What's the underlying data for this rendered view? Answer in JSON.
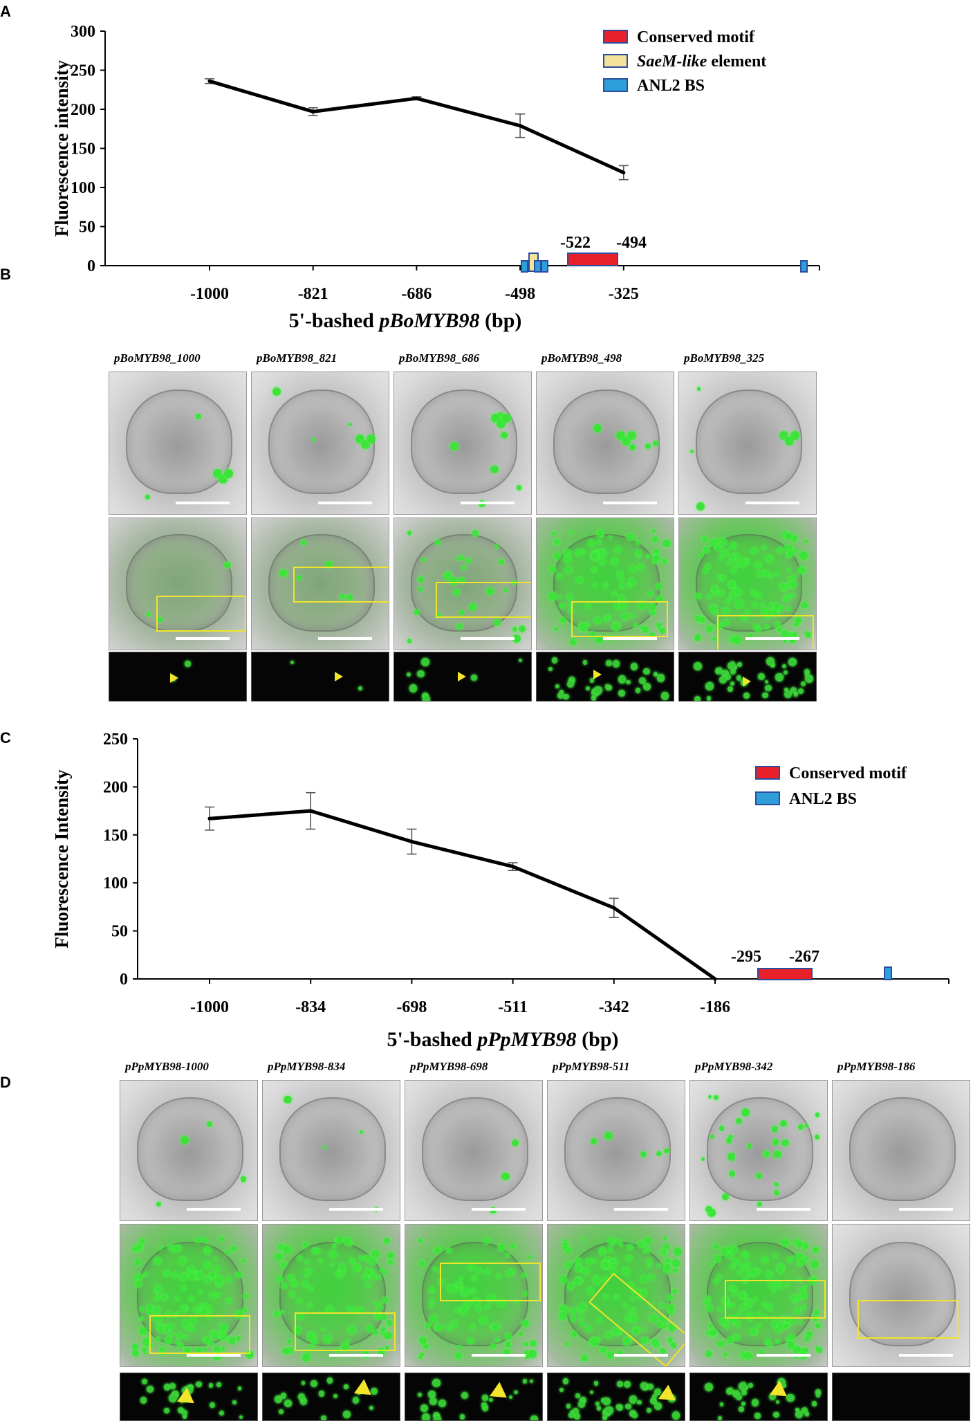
{
  "panels": {
    "a": "A",
    "b": "B",
    "c": "C",
    "d": "D"
  },
  "chart_data": [
    {
      "type": "line",
      "ylabel": "Fluorescence intensity",
      "xlabel_prefix": "5'-bashed ",
      "xlabel_gene": "pBoMYB98",
      "xlabel_suffix": " (bp)",
      "categories": [
        "-1000",
        "-821",
        "-686",
        "-498",
        "-325"
      ],
      "values": [
        236,
        197,
        214,
        179,
        119
      ],
      "errors": [
        3,
        5,
        2,
        15,
        9
      ],
      "ylim": [
        0,
        300
      ],
      "yticks": [
        0,
        50,
        100,
        150,
        200,
        250,
        300
      ],
      "legend_position": "top-right",
      "legend": [
        {
          "label_italic": "",
          "label": "Conserved motif",
          "color": "#e8202a"
        },
        {
          "label_italic": "SaeM-like",
          "label": " element",
          "color": "#f4e29a"
        },
        {
          "label_italic": "",
          "label": "ANL2 BS",
          "color": "#2f9fdc"
        }
      ],
      "motif_labels": [
        "-522",
        "-494"
      ]
    },
    {
      "type": "line",
      "ylabel": "Fluorescence Intensity",
      "xlabel_prefix": "5'-bashed ",
      "xlabel_gene": "pPpMYB98",
      "xlabel_suffix": " (bp)",
      "categories": [
        "-1000",
        "-834",
        "-698",
        "-511",
        "-342",
        "-186"
      ],
      "values": [
        167,
        175,
        143,
        117,
        74,
        0
      ],
      "errors": [
        12,
        19,
        13,
        4,
        10,
        0
      ],
      "ylim": [
        0,
        250
      ],
      "yticks": [
        0,
        50,
        100,
        150,
        200,
        250
      ],
      "legend_position": "top-right",
      "legend": [
        {
          "label_italic": "",
          "label": "Conserved motif",
          "color": "#e8202a"
        },
        {
          "label_italic": "",
          "label": "ANL2 BS",
          "color": "#2f9fdc"
        }
      ],
      "motif_labels": [
        "-295",
        "-267"
      ]
    }
  ],
  "micrographs_b": {
    "labels": [
      "pBoMYB98_1000",
      "pBoMYB98_821",
      "pBoMYB98_686",
      "pBoMYB98_498",
      "pBoMYB98_325"
    ]
  },
  "micrographs_d": {
    "labels": [
      "pPpMYB98-1000",
      "pPpMYB98-834",
      "pPpMYB98-698",
      "pPpMYB98-511",
      "pPpMYB98-342",
      "pPpMYB98-186"
    ]
  },
  "colors": {
    "line": "#000000",
    "highlight_box": "#f0e52a",
    "gfp": "#3de33a"
  }
}
